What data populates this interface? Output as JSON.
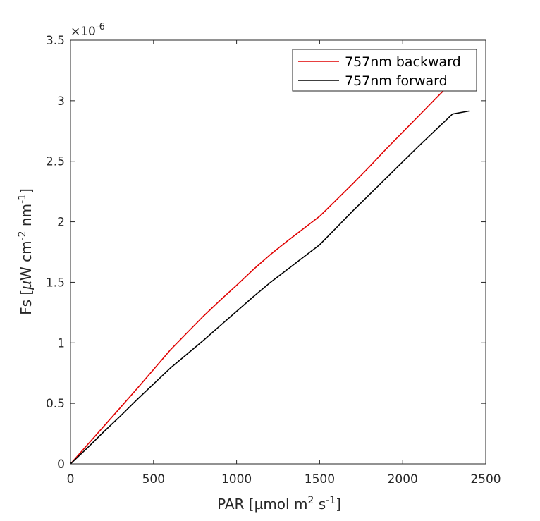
{
  "chart_data": {
    "type": "line",
    "title": "",
    "xlabel": {
      "main": "PAR [µmol m",
      "sup1": "2",
      "mid": " s",
      "sup2": "-1",
      "end": "]"
    },
    "ylabel": {
      "p1": "Fs [",
      "mu": "µ",
      "p2": "W cm",
      "sup1": "-2",
      "p3": " nm",
      "sup2": "-1",
      "p4": "]"
    },
    "xlim": [
      0,
      2500
    ],
    "ylim": [
      0,
      3.5
    ],
    "y_exponent": {
      "base": "×10",
      "power": "-6"
    },
    "x_ticks": [
      0,
      500,
      1000,
      1500,
      2000,
      2500
    ],
    "x_tick_labels": [
      "0",
      "500",
      "1000",
      "1500",
      "2000",
      "2500"
    ],
    "y_ticks": [
      0,
      0.5,
      1,
      1.5,
      2,
      2.5,
      3,
      3.5
    ],
    "y_tick_labels": [
      "0",
      "0.5",
      "1",
      "1.5",
      "2",
      "2.5",
      "3",
      "3.5"
    ],
    "legend_position": "top-right",
    "series": [
      {
        "name": "757nm backward",
        "color": "#e00000",
        "points": [
          [
            0,
            0
          ],
          [
            100,
            0.155
          ],
          [
            200,
            0.31
          ],
          [
            300,
            0.465
          ],
          [
            400,
            0.62
          ],
          [
            500,
            0.78
          ],
          [
            600,
            0.94
          ],
          [
            700,
            1.08
          ],
          [
            800,
            1.22
          ],
          [
            900,
            1.35
          ],
          [
            1000,
            1.475
          ],
          [
            1100,
            1.605
          ],
          [
            1200,
            1.725
          ],
          [
            1300,
            1.835
          ],
          [
            1400,
            1.94
          ],
          [
            1500,
            2.045
          ],
          [
            1600,
            2.18
          ],
          [
            1700,
            2.315
          ],
          [
            1800,
            2.455
          ],
          [
            1900,
            2.6
          ],
          [
            2000,
            2.74
          ],
          [
            2100,
            2.88
          ],
          [
            2200,
            3.02
          ],
          [
            2280,
            3.13
          ]
        ]
      },
      {
        "name": "757nm forward",
        "color": "#000000",
        "points": [
          [
            0,
            0
          ],
          [
            100,
            0.13
          ],
          [
            200,
            0.265
          ],
          [
            300,
            0.395
          ],
          [
            400,
            0.53
          ],
          [
            500,
            0.66
          ],
          [
            600,
            0.79
          ],
          [
            700,
            0.905
          ],
          [
            800,
            1.02
          ],
          [
            900,
            1.14
          ],
          [
            1000,
            1.26
          ],
          [
            1100,
            1.38
          ],
          [
            1200,
            1.495
          ],
          [
            1300,
            1.6
          ],
          [
            1400,
            1.705
          ],
          [
            1500,
            1.81
          ],
          [
            1600,
            1.95
          ],
          [
            1700,
            2.09
          ],
          [
            1800,
            2.225
          ],
          [
            1900,
            2.36
          ],
          [
            2000,
            2.495
          ],
          [
            2100,
            2.63
          ],
          [
            2200,
            2.76
          ],
          [
            2300,
            2.89
          ],
          [
            2400,
            2.915
          ]
        ]
      }
    ]
  }
}
